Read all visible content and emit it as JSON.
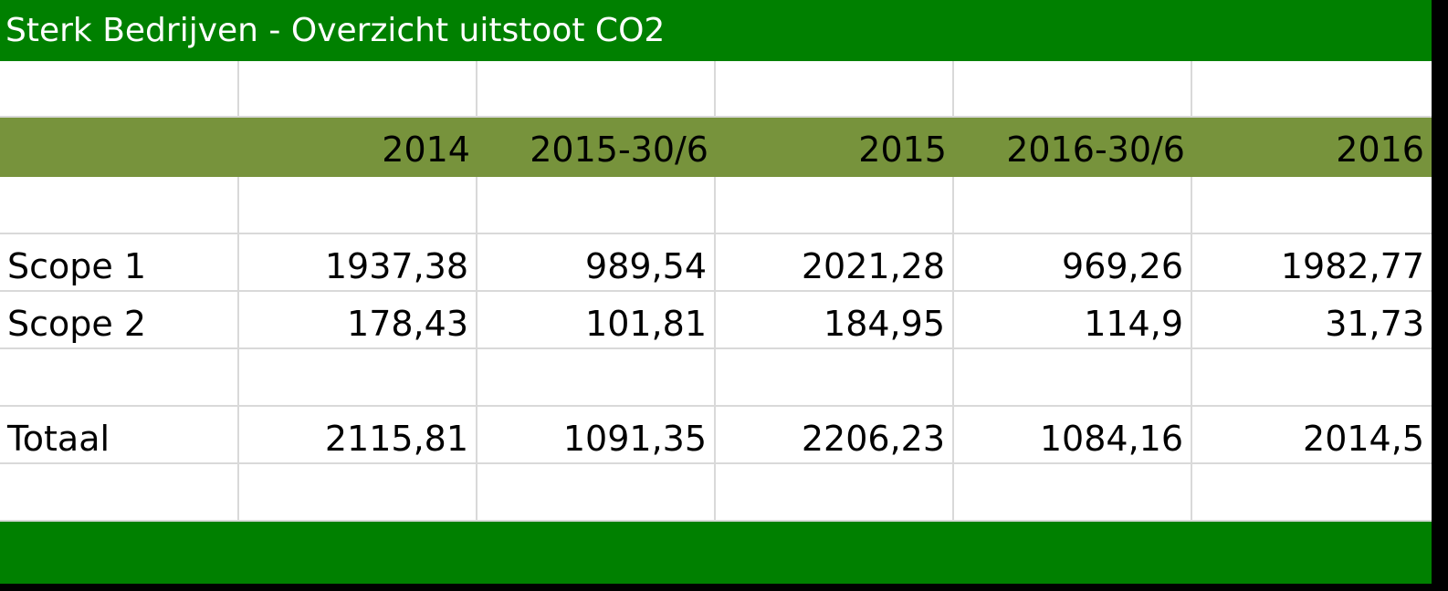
{
  "sheet": {
    "title": "Sterk Bedrijven - Overzicht uitstoot CO2",
    "columns": [
      "",
      "2014",
      "2015-30/6",
      "2015",
      "2016-30/6",
      "2016"
    ],
    "rows": [
      {
        "label": "Scope 1",
        "values": [
          "1937,38",
          "989,54",
          "2021,28",
          "969,26",
          "1982,77"
        ]
      },
      {
        "label": "Scope 2",
        "values": [
          "178,43",
          "101,81",
          "184,95",
          "114,9",
          "31,73"
        ]
      },
      {
        "label": "Totaal",
        "values": [
          "2115,81",
          "1091,35",
          "2206,23",
          "1084,16",
          "2014,5"
        ]
      }
    ]
  },
  "colors": {
    "title_bar": "#008000",
    "header_bar": "#77933c",
    "footer_bar": "#008000",
    "gridline": "#d9d9d9"
  }
}
